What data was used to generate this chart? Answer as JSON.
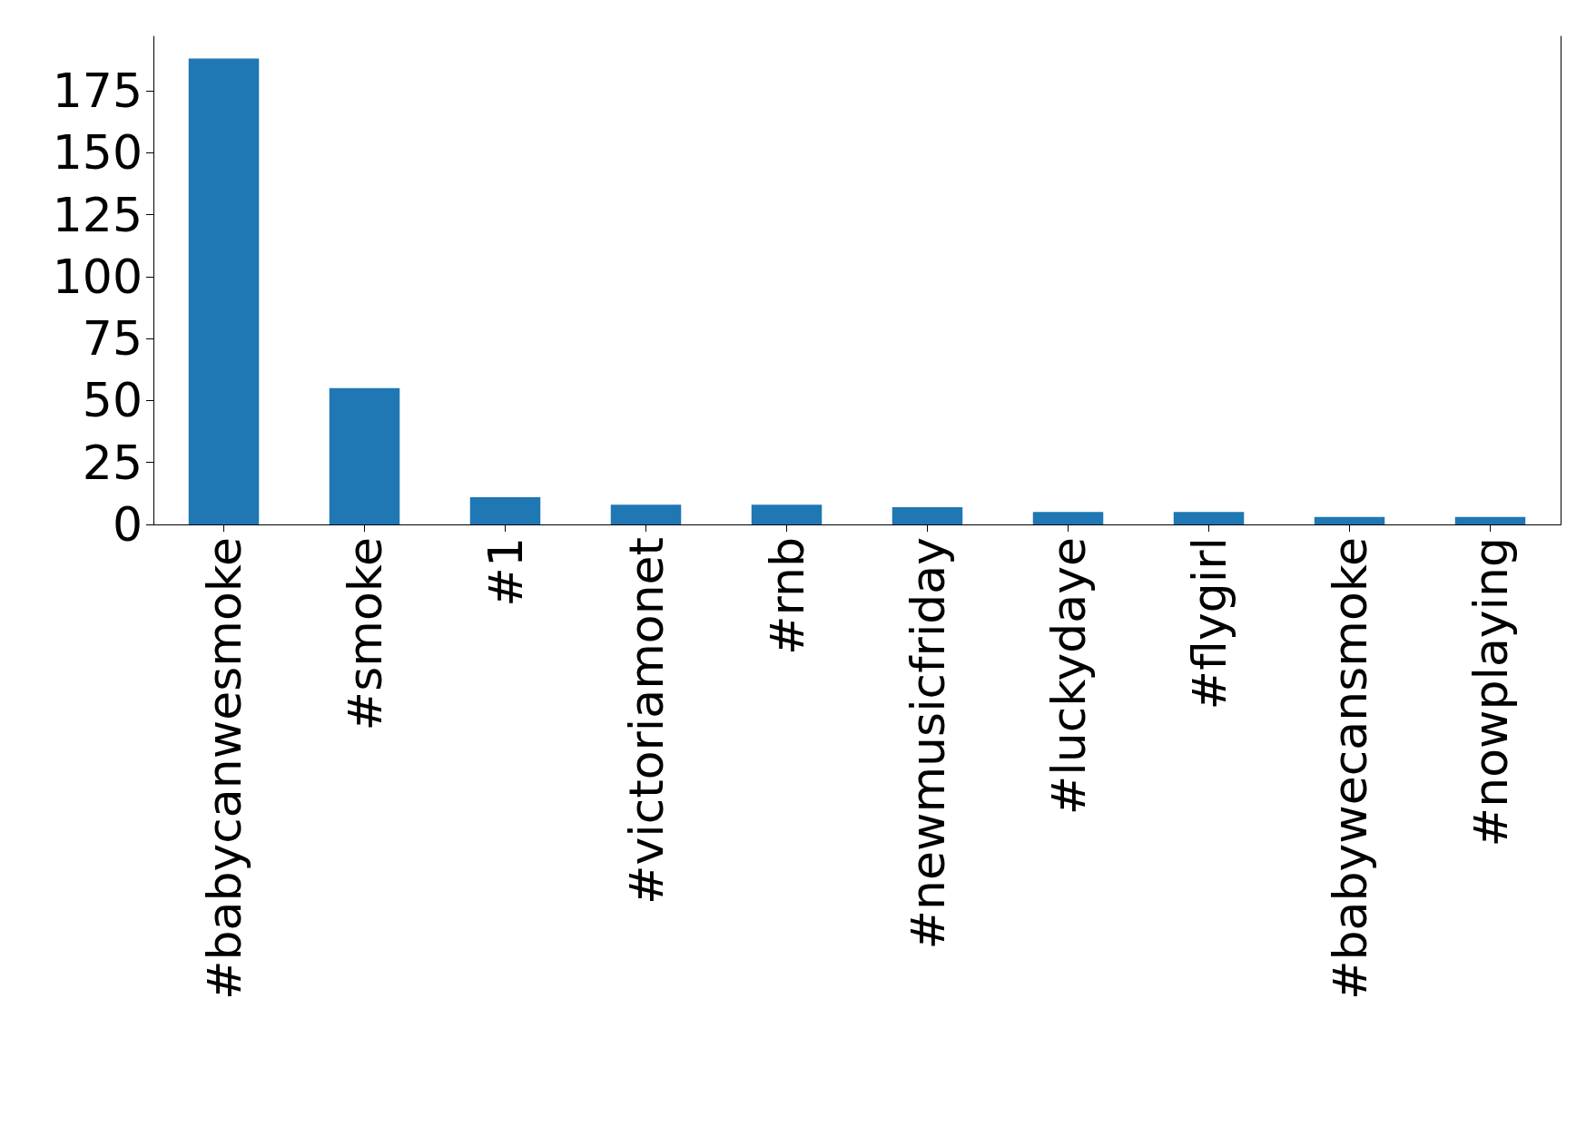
{
  "chart_data": {
    "type": "bar",
    "categories": [
      "#babycanwesmoke",
      "#smoke",
      "#1",
      "#victoriamonet",
      "#rnb",
      "#newmusicfriday",
      "#luckydaye",
      "#flygirl",
      "#babywecansmoke",
      "#nowplaying"
    ],
    "values": [
      188,
      55,
      11,
      8,
      8,
      7,
      5,
      5,
      3,
      3
    ],
    "color": "#1f77b4",
    "ylim": [
      0,
      197
    ],
    "yticks": [
      0,
      25,
      50,
      75,
      100,
      125,
      150,
      175
    ],
    "grid": false
  }
}
